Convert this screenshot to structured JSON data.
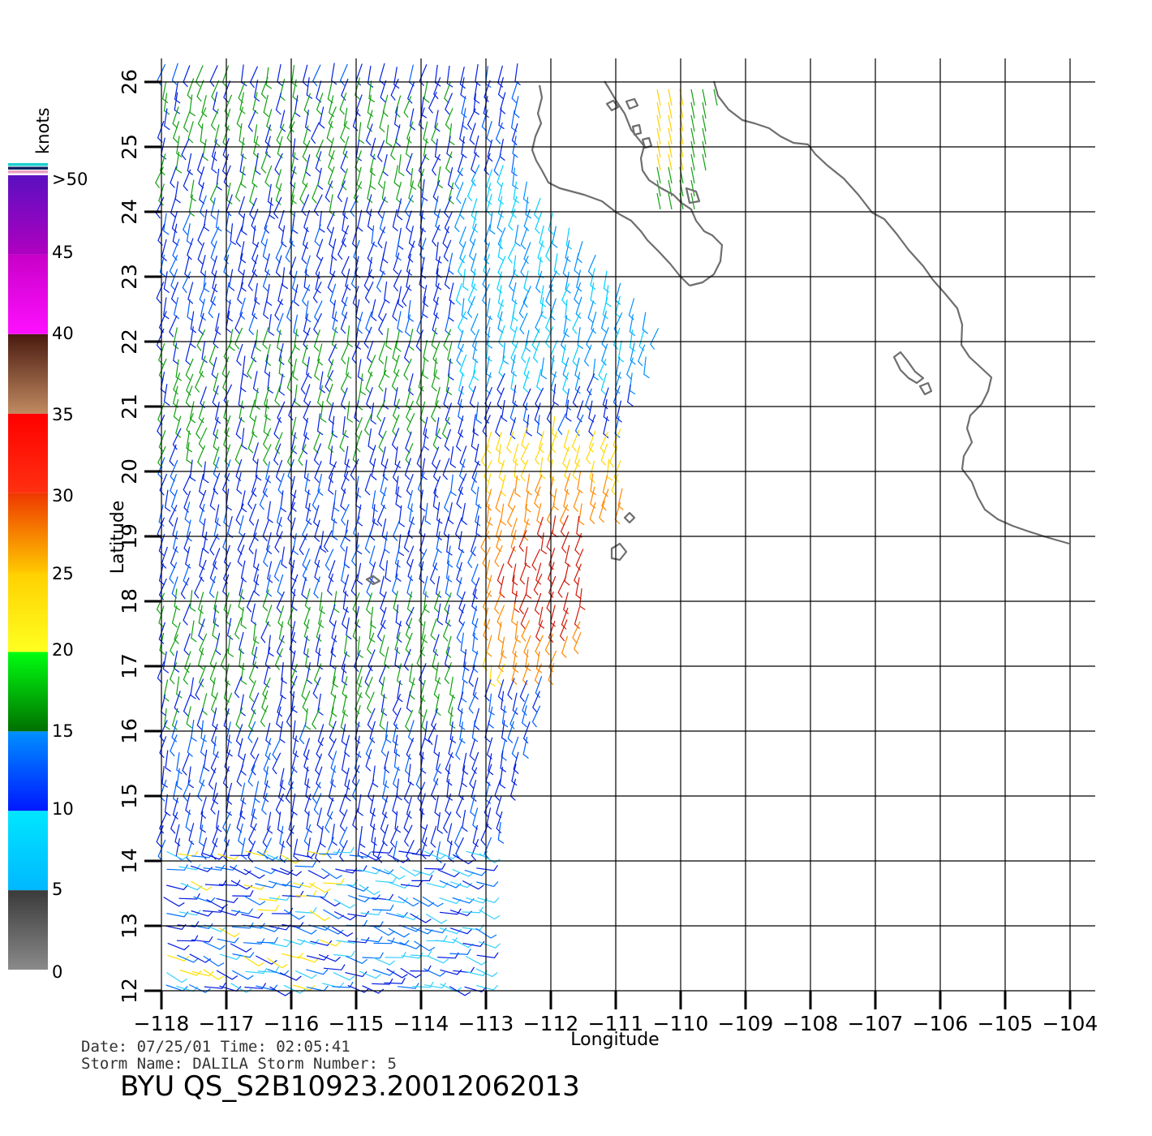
{
  "map": {
    "x_axis_title": "Longitude",
    "y_axis_title": "Latitude",
    "lon_ticks": [
      "−118",
      "−117",
      "−116",
      "−115",
      "−114",
      "−113",
      "−112",
      "−111",
      "−110",
      "−109",
      "−108",
      "−107",
      "−106",
      "−105",
      "−104"
    ],
    "lat_ticks": [
      "12",
      "13",
      "14",
      "15",
      "16",
      "17",
      "18",
      "19",
      "20",
      "21",
      "22",
      "23",
      "24",
      "25",
      "26"
    ],
    "lon_range": [
      -118,
      -104
    ],
    "lat_range": [
      12,
      26
    ],
    "coastline_color": "#6e6e6e",
    "grid_color": "#000000"
  },
  "legend": {
    "unit": "knots",
    "labels": [
      ">50",
      "45",
      "40",
      "35",
      "30",
      "25",
      "20",
      "15",
      "10",
      "5",
      "0"
    ],
    "bands": [
      {
        "from": 0,
        "to": 5,
        "top": "#3a3a3a",
        "bottom": "#8a8a8a"
      },
      {
        "from": 5,
        "to": 10,
        "top": "#00e6ff",
        "bottom": "#00b8ff"
      },
      {
        "from": 10,
        "to": 15,
        "top": "#0090ff",
        "bottom": "#0018ff"
      },
      {
        "from": 15,
        "to": 20,
        "top": "#00ff10",
        "bottom": "#007000"
      },
      {
        "from": 20,
        "to": 25,
        "top": "#ffd000",
        "bottom": "#ffff20"
      },
      {
        "from": 25,
        "to": 30,
        "top": "#ee3800",
        "bottom": "#ffc800"
      },
      {
        "from": 30,
        "to": 35,
        "top": "#ff0000",
        "bottom": "#ff3010"
      },
      {
        "from": 35,
        "to": 40,
        "top": "#4a1a10",
        "bottom": "#c08a60"
      },
      {
        "from": 40,
        "to": 45,
        "top": "#c800c8",
        "bottom": "#ff10ff"
      },
      {
        "from": 45,
        "to": 50,
        "top": "#5a10c0",
        "bottom": "#b000c0"
      }
    ],
    "top_stripes": [
      "#18d0d0",
      "#102060",
      "#e8a0c0"
    ]
  },
  "info": {
    "date_line": "Date: 07/25/01   Time: 02:05:41",
    "storm_line": "Storm Name: DALILA   Storm Number: 5",
    "title": "BYU  QS_S2B10923.20012062013"
  }
}
